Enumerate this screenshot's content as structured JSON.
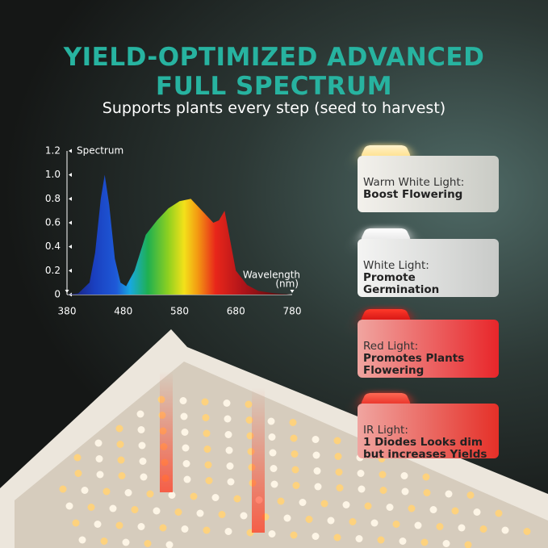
{
  "header": {
    "title_lines": [
      "YIELD-OPTIMIZED ADVANCED",
      "FULL SPECTRUM"
    ],
    "subtitle": "Supports plants every step (seed to harvest)"
  },
  "chart_data": {
    "type": "area",
    "y_label": "Spectrum",
    "x_label": "Wavelength",
    "x_unit": "(nm)",
    "x": [
      380,
      400,
      420,
      430,
      440,
      447,
      455,
      465,
      475,
      485,
      500,
      520,
      540,
      560,
      580,
      600,
      620,
      640,
      650,
      660,
      670,
      680,
      700,
      720,
      750,
      780
    ],
    "values": [
      0,
      0.01,
      0.1,
      0.35,
      0.8,
      1.0,
      0.75,
      0.3,
      0.1,
      0.07,
      0.2,
      0.5,
      0.62,
      0.72,
      0.78,
      0.8,
      0.7,
      0.6,
      0.62,
      0.7,
      0.45,
      0.2,
      0.08,
      0.03,
      0.01,
      0
    ],
    "xlim": [
      380,
      780
    ],
    "ylim": [
      0,
      1.2
    ],
    "xticks": [
      380,
      480,
      580,
      680,
      780
    ],
    "yticks": [
      0,
      0.2,
      0.4,
      0.6,
      0.8,
      {
        "value": 1,
        "label": "1.0"
      },
      1.2
    ]
  },
  "cards": [
    {
      "label": [
        "Warm White Light:"
      ],
      "emphasis": [
        "Boost Flowering"
      ]
    },
    {
      "label": [
        "White Light:"
      ],
      "emphasis": [
        "Promote",
        "Germination"
      ]
    },
    {
      "label": [
        "Red Light:"
      ],
      "emphasis": [
        "Promotes Plants",
        "Flowering"
      ]
    },
    {
      "label": [
        "IR Light:"
      ],
      "emphasis": [
        "1 Diodes Looks dim",
        "but increases Yields"
      ]
    }
  ]
}
